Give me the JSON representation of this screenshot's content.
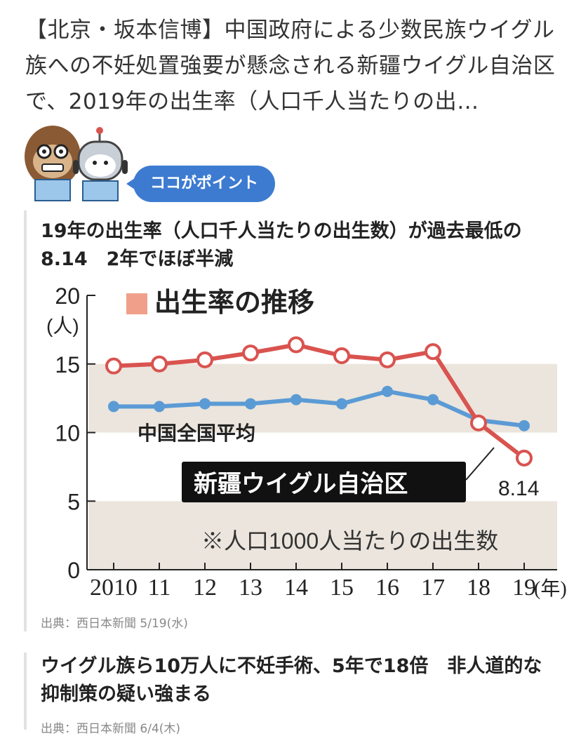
{
  "lead_text": "【北京・坂本信博】中国政府による少数民族ウイグル族への不妊処置強要が懸念される新疆ウイグル自治区で、2019年の出生率（人口千人当たりの出…",
  "point_badge": "ココがポイント",
  "articles": [
    {
      "headline": "19年の出生率（人口千人当たりの出生数）が過去最低の8.14　2年でほぼ半減",
      "source": "出典：西日本新聞 5/19(水)"
    },
    {
      "headline": "ウイグル族ら10万人に不妊手術、5年で18倍　非人道的な抑制策の疑い強まる",
      "source": "出典：西日本新聞 6/4(木)"
    }
  ],
  "chart_data": {
    "type": "line",
    "title": "出生率の推移",
    "y_unit": "(人)",
    "x_unit": "(年)",
    "note": "※人口1000人当たりの出生数",
    "categories": [
      "2010",
      "11",
      "12",
      "13",
      "14",
      "15",
      "16",
      "17",
      "18",
      "19"
    ],
    "ylim": [
      0,
      20
    ],
    "yticks": [
      "0",
      "5",
      "10",
      "15",
      "20"
    ],
    "series": [
      {
        "name": "中国全国平均",
        "color": "#5b9bd5",
        "values": [
          11.9,
          11.9,
          12.1,
          12.1,
          12.4,
          12.1,
          13.0,
          12.4,
          10.9,
          10.5
        ]
      },
      {
        "name": "新疆ウイグル自治区",
        "color": "#d9534f",
        "values": [
          14.85,
          15.0,
          15.3,
          15.8,
          16.4,
          15.6,
          15.3,
          15.9,
          10.7,
          8.14
        ]
      }
    ],
    "annotation": "8.14",
    "bands_color": "#ebe5dd",
    "legend_marker_color": "#f0a08a"
  }
}
